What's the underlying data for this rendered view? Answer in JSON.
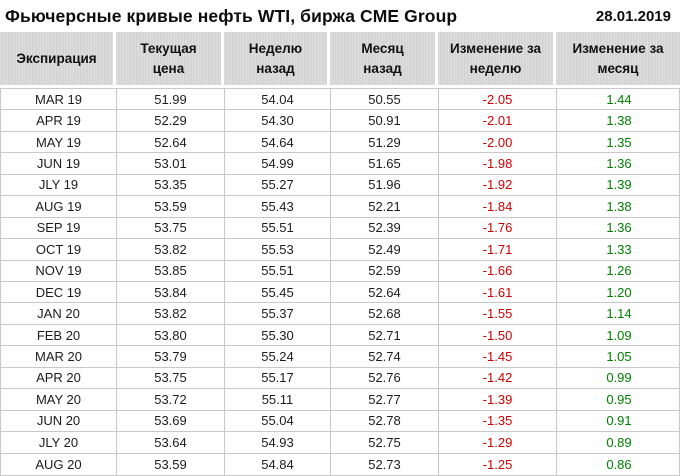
{
  "page_title_bar": {
    "title": "Фьючерсные кривые нефть WTI, биржа CME Group",
    "date": "28.01.2019"
  },
  "chart_data": {
    "type": "table",
    "title": "Фьючерсные кривые нефть WTI, биржа CME Group",
    "date": "28.01.2019",
    "columns": [
      "Экспирация",
      "Текущая\nцена",
      "Неделю\nназад",
      "Месяц\nназад",
      "Изменение за\nнеделю",
      "Изменение за\nмесяц"
    ],
    "rows": [
      {
        "expiration": "MAR 19",
        "current": "51.99",
        "week_ago": "54.04",
        "month_ago": "50.55",
        "change_week": "-2.05",
        "change_month": "1.44"
      },
      {
        "expiration": "APR 19",
        "current": "52.29",
        "week_ago": "54.30",
        "month_ago": "50.91",
        "change_week": "-2.01",
        "change_month": "1.38"
      },
      {
        "expiration": "MAY 19",
        "current": "52.64",
        "week_ago": "54.64",
        "month_ago": "51.29",
        "change_week": "-2.00",
        "change_month": "1.35"
      },
      {
        "expiration": "JUN 19",
        "current": "53.01",
        "week_ago": "54.99",
        "month_ago": "51.65",
        "change_week": "-1.98",
        "change_month": "1.36"
      },
      {
        "expiration": "JLY 19",
        "current": "53.35",
        "week_ago": "55.27",
        "month_ago": "51.96",
        "change_week": "-1.92",
        "change_month": "1.39"
      },
      {
        "expiration": "AUG 19",
        "current": "53.59",
        "week_ago": "55.43",
        "month_ago": "52.21",
        "change_week": "-1.84",
        "change_month": "1.38"
      },
      {
        "expiration": "SEP 19",
        "current": "53.75",
        "week_ago": "55.51",
        "month_ago": "52.39",
        "change_week": "-1.76",
        "change_month": "1.36"
      },
      {
        "expiration": "OCT 19",
        "current": "53.82",
        "week_ago": "55.53",
        "month_ago": "52.49",
        "change_week": "-1.71",
        "change_month": "1.33"
      },
      {
        "expiration": "NOV 19",
        "current": "53.85",
        "week_ago": "55.51",
        "month_ago": "52.59",
        "change_week": "-1.66",
        "change_month": "1.26"
      },
      {
        "expiration": "DEC 19",
        "current": "53.84",
        "week_ago": "55.45",
        "month_ago": "52.64",
        "change_week": "-1.61",
        "change_month": "1.20"
      },
      {
        "expiration": "JAN 20",
        "current": "53.82",
        "week_ago": "55.37",
        "month_ago": "52.68",
        "change_week": "-1.55",
        "change_month": "1.14"
      },
      {
        "expiration": "FEB 20",
        "current": "53.80",
        "week_ago": "55.30",
        "month_ago": "52.71",
        "change_week": "-1.50",
        "change_month": "1.09"
      },
      {
        "expiration": "MAR 20",
        "current": "53.79",
        "week_ago": "55.24",
        "month_ago": "52.74",
        "change_week": "-1.45",
        "change_month": "1.05"
      },
      {
        "expiration": "APR 20",
        "current": "53.75",
        "week_ago": "55.17",
        "month_ago": "52.76",
        "change_week": "-1.42",
        "change_month": "0.99"
      },
      {
        "expiration": "MAY 20",
        "current": "53.72",
        "week_ago": "55.11",
        "month_ago": "52.77",
        "change_week": "-1.39",
        "change_month": "0.95"
      },
      {
        "expiration": "JUN 20",
        "current": "53.69",
        "week_ago": "55.04",
        "month_ago": "52.78",
        "change_week": "-1.35",
        "change_month": "0.91"
      },
      {
        "expiration": "JLY 20",
        "current": "53.64",
        "week_ago": "54.93",
        "month_ago": "52.75",
        "change_week": "-1.29",
        "change_month": "0.89"
      },
      {
        "expiration": "AUG 20",
        "current": "53.59",
        "week_ago": "54.84",
        "month_ago": "52.73",
        "change_week": "-1.25",
        "change_month": "0.86"
      }
    ]
  },
  "colors": {
    "negative": "#cc0000",
    "positive": "#008000",
    "header_bg": "#d6d6d6",
    "grid_border": "#c8c8c8"
  }
}
